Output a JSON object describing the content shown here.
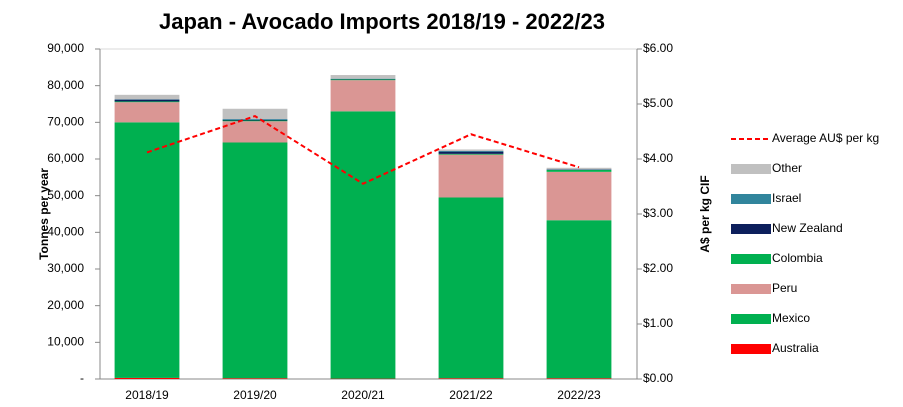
{
  "chart_data": {
    "type": "bar",
    "stacked": true,
    "title": "Japan - Avocado Imports 2018/19 - 2022/23",
    "y_label": "Tonnes per year",
    "y2_label": "A$ per kg CIF",
    "categories": [
      "2018/19",
      "2019/20",
      "2020/21",
      "2021/22",
      "2022/23"
    ],
    "series": [
      {
        "name": "Australia",
        "color": "#ff0000",
        "values": [
          300,
          200,
          100,
          200,
          200
        ]
      },
      {
        "name": "Mexico",
        "color": "#00b050",
        "values": [
          69700,
          64300,
          72900,
          49300,
          43100
        ]
      },
      {
        "name": "Peru",
        "color": "#da9694",
        "values": [
          5500,
          5800,
          8500,
          11700,
          13200
        ]
      },
      {
        "name": "Colombia",
        "color": "#00b050",
        "values": [
          200,
          200,
          200,
          200,
          500
        ]
      },
      {
        "name": "New Zealand",
        "color": "#0d1f5c",
        "values": [
          500,
          200,
          100,
          600,
          100
        ]
      },
      {
        "name": "Israel",
        "color": "#31859c",
        "values": [
          100,
          200,
          100,
          200,
          100
        ]
      },
      {
        "name": "Other",
        "color": "#c0c0c0",
        "values": [
          1200,
          2800,
          1000,
          400,
          400
        ]
      },
      {
        "name": "Average AU$ per kg",
        "color": "#ff0000",
        "axis": "y2",
        "dashed": true,
        "values": [
          4.12,
          4.78,
          3.55,
          4.45,
          3.85
        ]
      }
    ],
    "ylim": [
      0,
      90000
    ],
    "yticks": [
      {
        "value": 0,
        "label": "-"
      },
      {
        "value": 10000,
        "label": "10,000"
      },
      {
        "value": 20000,
        "label": "20,000"
      },
      {
        "value": 30000,
        "label": "30,000"
      },
      {
        "value": 40000,
        "label": "40,000"
      },
      {
        "value": 50000,
        "label": "50,000"
      },
      {
        "value": 60000,
        "label": "60,000"
      },
      {
        "value": 70000,
        "label": "70,000"
      },
      {
        "value": 80000,
        "label": "80,000"
      },
      {
        "value": 90000,
        "label": "90,000"
      }
    ],
    "y2lim": [
      0,
      6
    ],
    "y2ticks": [
      {
        "value": 0,
        "label": "$0.00"
      },
      {
        "value": 1,
        "label": "$1.00"
      },
      {
        "value": 2,
        "label": "$2.00"
      },
      {
        "value": 3,
        "label": "$3.00"
      },
      {
        "value": 4,
        "label": "$4.00"
      },
      {
        "value": 5,
        "label": "$5.00"
      },
      {
        "value": 6,
        "label": "$6.00"
      }
    ],
    "legend": "right",
    "grid": false
  }
}
